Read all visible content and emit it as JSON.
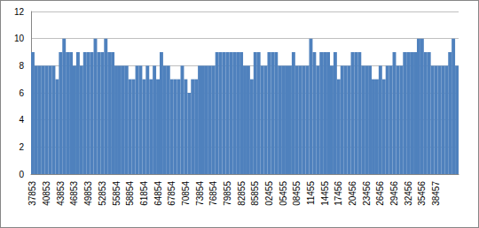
{
  "chart_data": {
    "type": "bar",
    "categories": [
      "37853",
      null,
      null,
      null,
      "40853",
      null,
      null,
      null,
      "43853",
      null,
      null,
      null,
      "46853",
      null,
      null,
      null,
      "49853",
      null,
      null,
      null,
      "52853",
      null,
      null,
      null,
      "55854",
      null,
      null,
      null,
      "58854",
      null,
      null,
      null,
      "61854",
      null,
      null,
      null,
      "64854",
      null,
      null,
      null,
      "67854",
      null,
      null,
      null,
      "70854",
      null,
      null,
      null,
      "73854",
      null,
      null,
      null,
      "76854",
      null,
      null,
      null,
      "79855",
      null,
      null,
      null,
      "82855",
      null,
      null,
      null,
      "85855",
      null,
      null,
      null,
      "02455",
      null,
      null,
      null,
      "05455",
      null,
      null,
      null,
      "08455",
      null,
      null,
      null,
      "11455",
      null,
      null,
      null,
      "14455",
      null,
      null,
      null,
      "17456",
      null,
      null,
      null,
      "20456",
      null,
      null,
      null,
      "23456",
      null,
      null,
      null,
      "26456",
      null,
      null,
      null,
      "29456",
      null,
      null,
      null,
      "32456",
      null,
      null,
      null,
      "35456",
      null,
      null,
      null,
      "38457",
      null,
      null,
      null,
      null,
      null,
      null
    ],
    "values": [
      9,
      8,
      8,
      8,
      8,
      8,
      8,
      7,
      9,
      10,
      9,
      9,
      8,
      9,
      8,
      9,
      9,
      9,
      10,
      9,
      9,
      10,
      9,
      9,
      8,
      8,
      8,
      8,
      7,
      7,
      8,
      8,
      7,
      8,
      7,
      8,
      7,
      9,
      8,
      8,
      7,
      7,
      7,
      8,
      7,
      6,
      7,
      7,
      8,
      8,
      8,
      8,
      8,
      9,
      9,
      9,
      9,
      9,
      9,
      9,
      9,
      8,
      8,
      7,
      9,
      9,
      8,
      8,
      9,
      9,
      9,
      8,
      8,
      8,
      8,
      9,
      8,
      8,
      8,
      8,
      10,
      9,
      8,
      9,
      9,
      9,
      8,
      9,
      7,
      8,
      8,
      8,
      9,
      9,
      9,
      8,
      8,
      8,
      7,
      7,
      8,
      7,
      8,
      8,
      9,
      8,
      8,
      9,
      9,
      9,
      9,
      10,
      10,
      9,
      9,
      8,
      8,
      8,
      8,
      8,
      9,
      10,
      8
    ],
    "color": "#4f81bd",
    "ylim": [
      0,
      12
    ],
    "yticks": [
      0,
      2,
      4,
      6,
      8,
      10,
      12
    ],
    "grid": true
  }
}
